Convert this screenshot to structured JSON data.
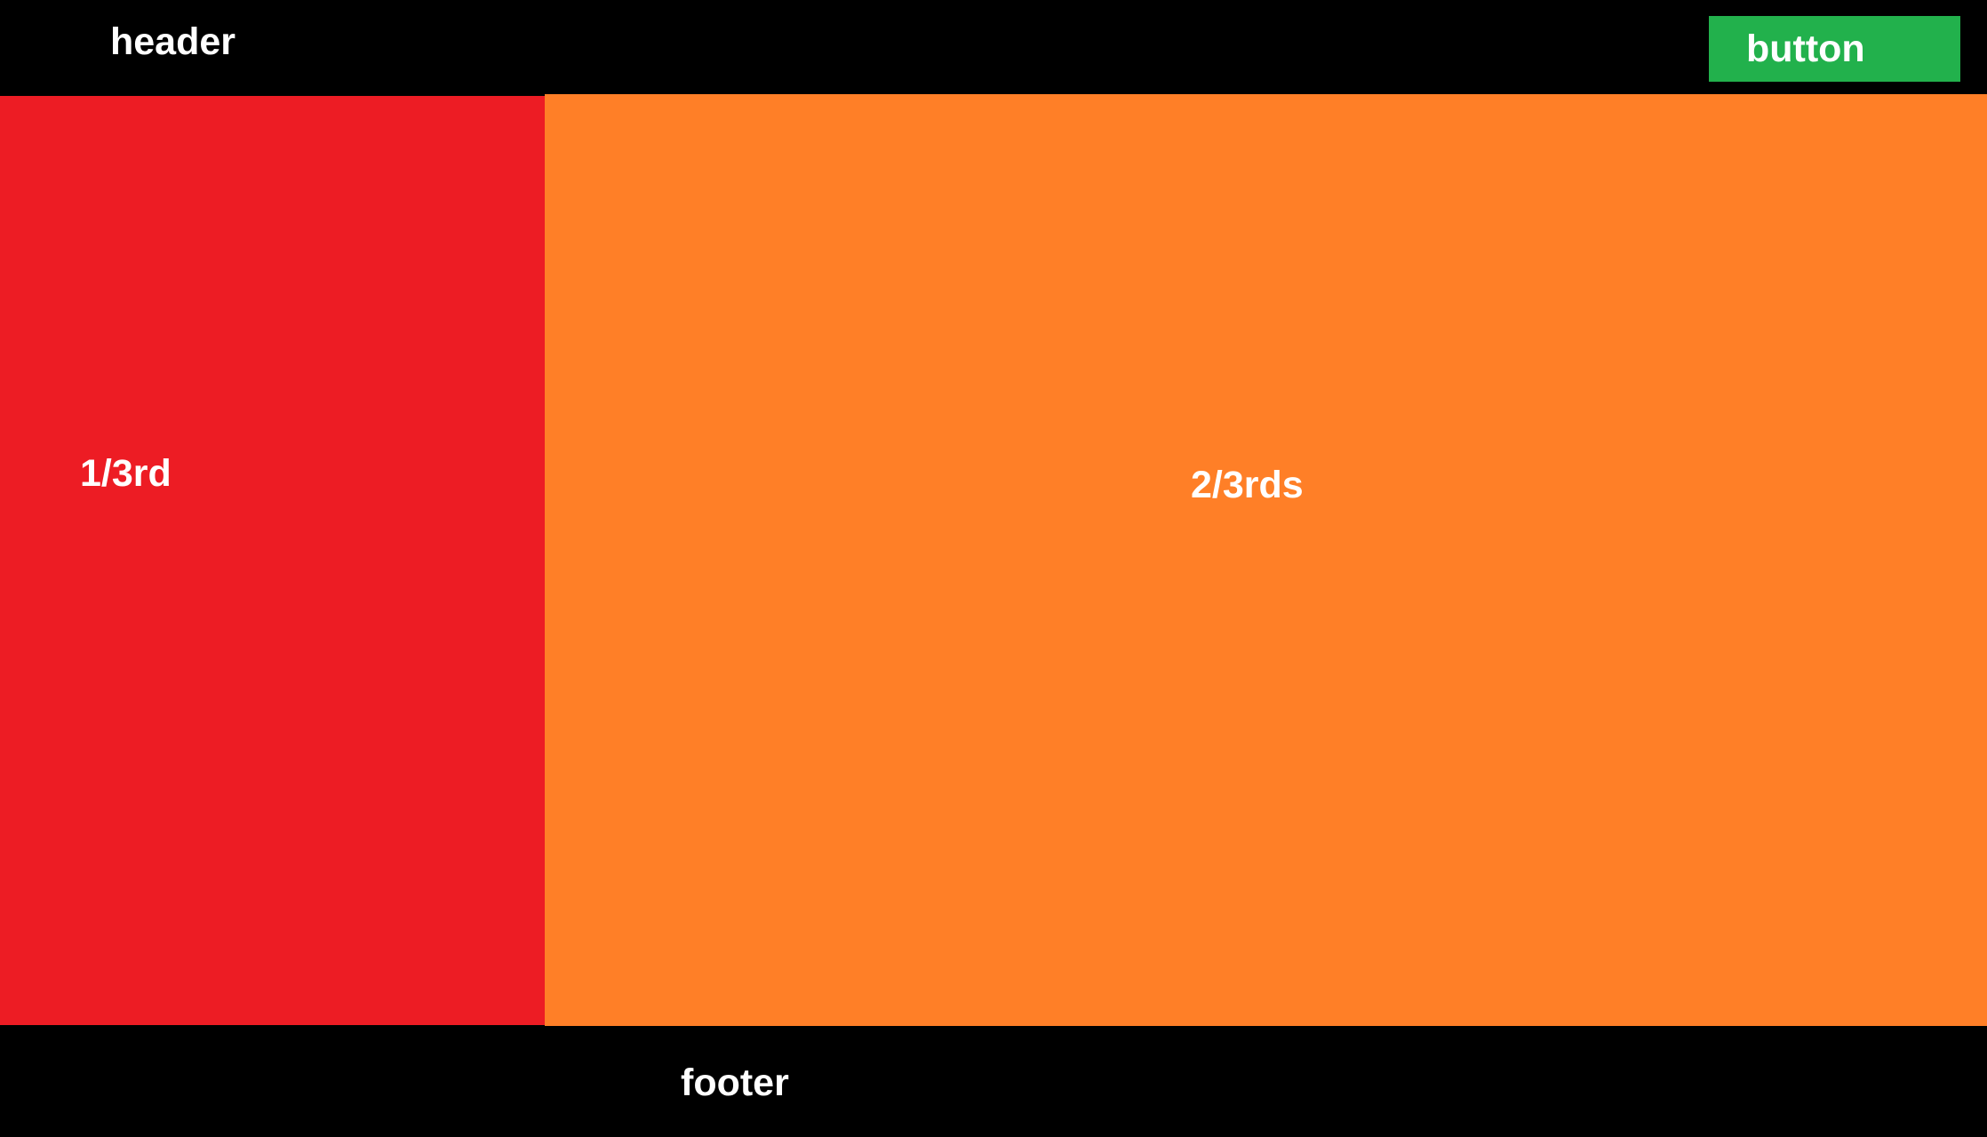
{
  "header": {
    "title": "header",
    "button_label": "button"
  },
  "main": {
    "left_panel_label": "1/3rd",
    "right_panel_label": "2/3rds"
  },
  "footer": {
    "label": "footer"
  },
  "colors": {
    "background": "#000000",
    "button": "#22b14c",
    "left_panel": "#ed1c24",
    "right_panel": "#ff7f27",
    "text": "#ffffff"
  }
}
